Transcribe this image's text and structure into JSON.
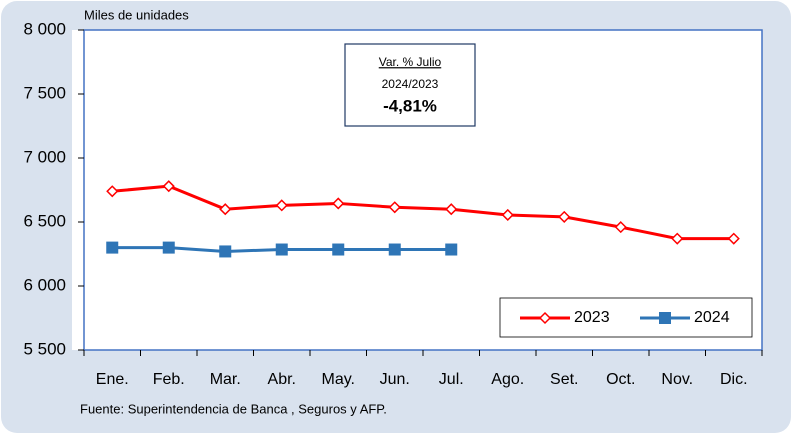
{
  "chart_data": {
    "type": "line",
    "y_label": "Miles de unidades",
    "annotation": {
      "title": "Var. % Julio",
      "period": "2024/2023",
      "value": "-4,81%"
    },
    "source": "Fuente: Superintendencia de Banca , Seguros y AFP.",
    "categories": [
      "Ene.",
      "Feb.",
      "Mar.",
      "Abr.",
      "May.",
      "Jun.",
      "Jul.",
      "Ago.",
      "Set.",
      "Oct.",
      "Nov.",
      "Dic."
    ],
    "series": [
      {
        "name": "2023",
        "color": "#ff0000",
        "marker": "diamond",
        "values": [
          6740,
          6780,
          6600,
          6630,
          6645,
          6615,
          6600,
          6555,
          6540,
          6460,
          6370,
          6370
        ]
      },
      {
        "name": "2024",
        "color": "#2e75b6",
        "marker": "square",
        "values": [
          6300,
          6300,
          6270,
          6285,
          6285,
          6285,
          6285,
          null,
          null,
          null,
          null,
          null
        ]
      }
    ],
    "ylim": [
      5500,
      8000
    ],
    "yticks": [
      {
        "value": 5500,
        "label": "5 500"
      },
      {
        "value": 6000,
        "label": "6 000"
      },
      {
        "value": 6500,
        "label": "6 500"
      },
      {
        "value": 7000,
        "label": "7 000"
      },
      {
        "value": 7500,
        "label": "7 500"
      },
      {
        "value": 8000,
        "label": "8 000"
      }
    ],
    "legend": "lower right"
  }
}
